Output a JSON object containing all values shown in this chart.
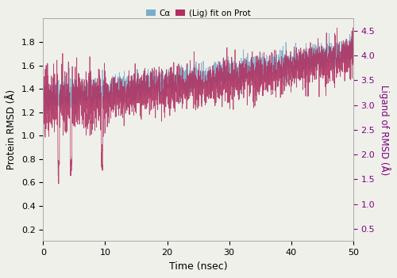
{
  "title": "",
  "xlabel": "Time (nsec)",
  "ylabel_left": "Protein RMSD (Å)",
  "ylabel_right": "Ligand of RMSD (Å)",
  "legend_labels": [
    "Cα",
    "(Lig) fit on Prot"
  ],
  "legend_colors": [
    "#7aaec8",
    "#b03060"
  ],
  "xlim": [
    0,
    50
  ],
  "ylim_left": [
    0.1,
    2.0
  ],
  "ylim_right": [
    0.25,
    4.75
  ],
  "xticks": [
    0,
    10,
    20,
    30,
    40,
    50
  ],
  "yticks_left": [
    0.2,
    0.4,
    0.6,
    0.8,
    1.0,
    1.2,
    1.4,
    1.6,
    1.8
  ],
  "yticks_right": [
    0.5,
    1.0,
    1.5,
    2.0,
    2.5,
    3.0,
    3.5,
    4.0,
    4.5
  ],
  "color_left": "#7aaec8",
  "color_right": "#b03060",
  "color_right_label": "#800080",
  "seed": 42,
  "n_points": 2500,
  "background_color": "#f0f0eb"
}
